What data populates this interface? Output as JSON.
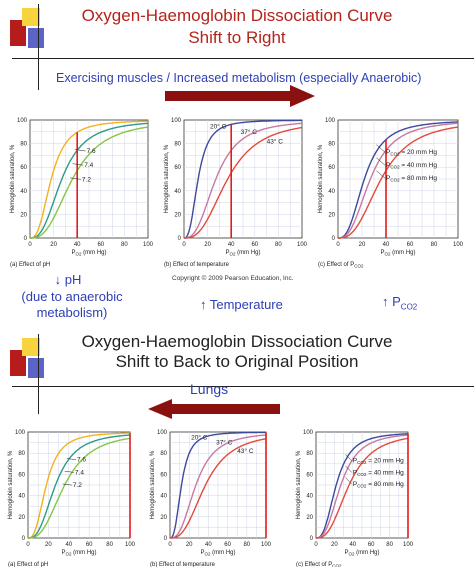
{
  "top": {
    "title_line1": "Oxygen-Haemoglobin Dissociation Curve",
    "title_line2": "Shift to Right",
    "banner": "Exercising muscles / Increased metabolism (especially Anaerobic)",
    "note_ph_arrow": "↓ pH",
    "note_ph_cause": "(due to anaerobic metabolism)",
    "note_temp": "↑ Temperature",
    "note_co2_prefix": "↑ P",
    "note_co2_sub": "CO2",
    "copyright": "Copyright © 2009 Pearson Education, Inc."
  },
  "bottom": {
    "title_line1": "Oxygen-Haemoglobin Dissociation Curve",
    "title_line2": "Shift to Back to Original Position",
    "banner": "Lungs"
  },
  "panel_text": {
    "ylabel": "Hemoglobin saturation, %",
    "xlabel_prefix": "P",
    "xlabel_sub": "O2",
    "xlabel_suffix": " (mm Hg)",
    "cap_a": "(a) Effect of pH",
    "cap_b": "(b) Effect of temperature",
    "cap_c_prefix": "(c) Effect of P",
    "cap_c_sub": "CO2",
    "ph_labels": [
      "7.6",
      "7.4",
      "7.2"
    ],
    "temp_labels": [
      "20° C",
      "37° C",
      "43° C"
    ],
    "co2_labels": [
      "= 20 mm Hg",
      "= 40 mm Hg",
      "= 80 mm Hg"
    ],
    "co2_prefix": "P",
    "co2_sub": "CO2"
  },
  "chart_data": [
    {
      "type": "line",
      "panel": "top-a",
      "x": [
        0,
        20,
        40,
        60,
        80,
        100
      ],
      "xlim": [
        0,
        100
      ],
      "ylim": [
        0,
        100
      ],
      "series": [
        {
          "name": "7.6",
          "p50": 18
        },
        {
          "name": "7.4",
          "p50": 27
        },
        {
          "name": "7.2",
          "p50": 36
        }
      ],
      "marker_x": 40
    },
    {
      "type": "line",
      "panel": "top-b",
      "x": [
        0,
        20,
        40,
        60,
        80,
        100
      ],
      "xlim": [
        0,
        100
      ],
      "ylim": [
        0,
        100
      ],
      "series": [
        {
          "name": "20° C",
          "p50": 12
        },
        {
          "name": "37° C",
          "p50": 27
        },
        {
          "name": "43° C",
          "p50": 37
        }
      ],
      "marker_x": 40
    },
    {
      "type": "line",
      "panel": "top-c",
      "x": [
        0,
        20,
        40,
        60,
        80,
        100
      ],
      "xlim": [
        0,
        100
      ],
      "ylim": [
        0,
        100
      ],
      "series": [
        {
          "name": "20 mm Hg",
          "p50": 22
        },
        {
          "name": "40 mm Hg",
          "p50": 27
        },
        {
          "name": "80 mm Hg",
          "p50": 36
        }
      ],
      "marker_x": 40
    },
    {
      "type": "line",
      "panel": "bottom-a",
      "x": [
        0,
        20,
        40,
        60,
        80,
        100
      ],
      "xlim": [
        0,
        100
      ],
      "ylim": [
        0,
        100
      ],
      "series": [
        {
          "name": "7.6",
          "p50": 18
        },
        {
          "name": "7.4",
          "p50": 27
        },
        {
          "name": "7.2",
          "p50": 36
        }
      ],
      "marker_x": 100
    },
    {
      "type": "line",
      "panel": "bottom-b",
      "x": [
        0,
        20,
        40,
        60,
        80,
        100
      ],
      "xlim": [
        0,
        100
      ],
      "ylim": [
        0,
        100
      ],
      "series": [
        {
          "name": "20° C",
          "p50": 12
        },
        {
          "name": "37° C",
          "p50": 27
        },
        {
          "name": "43° C",
          "p50": 37
        }
      ],
      "marker_x": 100
    },
    {
      "type": "line",
      "panel": "bottom-c",
      "x": [
        0,
        20,
        40,
        60,
        80,
        100
      ],
      "xlim": [
        0,
        100
      ],
      "ylim": [
        0,
        100
      ],
      "series": [
        {
          "name": "20 mm Hg",
          "p50": 22
        },
        {
          "name": "40 mm Hg",
          "p50": 27
        },
        {
          "name": "80 mm Hg",
          "p50": 36
        }
      ],
      "marker_x": 100
    }
  ],
  "colors": {
    "title_red": "#b4231c",
    "blue_text": "#2d3fb5",
    "arrow_red": "#8b1111",
    "marker_red": "#e21b1b",
    "ph_curves": [
      "#f3b21d",
      "#2d9a8a",
      "#87c540"
    ],
    "temp_curves": [
      "#3d4a9a",
      "#c77aa1",
      "#e24b3b"
    ],
    "co2_curves": [
      "#3d4a9a",
      "#c77aa1",
      "#e24b3b"
    ]
  }
}
